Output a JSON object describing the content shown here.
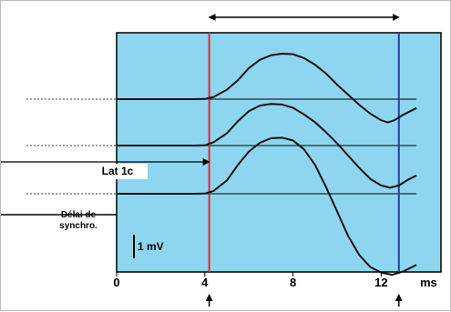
{
  "chart_data": {
    "type": "line",
    "x_unit": "ms",
    "xlim": [
      0,
      13.6
    ],
    "x_ticks": [
      "0",
      "4",
      "8",
      "12"
    ],
    "series": [
      {
        "x": [
          0,
          3.5,
          4.0,
          4.4,
          5.0,
          5.5,
          6.0,
          6.5,
          7.0,
          7.5,
          8.0,
          8.5,
          9.0,
          9.5,
          10.0,
          10.5,
          11.0,
          11.5,
          12.0,
          12.3,
          12.6,
          13.0,
          13.6
        ],
        "y": [
          0,
          0,
          0.02,
          0.2,
          0.85,
          1.7,
          2.8,
          3.55,
          3.95,
          4.1,
          4.05,
          3.7,
          3.1,
          2.3,
          1.3,
          0.4,
          -0.5,
          -1.3,
          -1.9,
          -2.1,
          -1.9,
          -1.4,
          -0.8
        ]
      },
      {
        "x": [
          0,
          3.5,
          4.0,
          4.4,
          5.0,
          5.5,
          6.0,
          6.5,
          7.0,
          7.5,
          8.0,
          8.5,
          9.0,
          9.5,
          10.0,
          10.5,
          11.0,
          11.5,
          12.0,
          12.4,
          12.8,
          13.2,
          13.6
        ],
        "y": [
          0,
          0,
          0.02,
          0.3,
          1.1,
          2.2,
          3.1,
          3.6,
          3.75,
          3.7,
          3.4,
          2.8,
          2.1,
          1.2,
          0.2,
          -0.9,
          -2.0,
          -3.0,
          -3.6,
          -3.8,
          -3.6,
          -3.1,
          -2.7
        ]
      },
      {
        "x": [
          0,
          3.5,
          4.0,
          4.4,
          5.0,
          5.5,
          6.0,
          6.5,
          7.0,
          7.5,
          8.0,
          8.5,
          9.0,
          9.5,
          10.0,
          10.5,
          11.0,
          11.5,
          12.0,
          12.5,
          13.0,
          13.6
        ],
        "y": [
          0,
          0,
          0.02,
          0.25,
          1.2,
          2.6,
          3.8,
          4.6,
          5.0,
          5.05,
          4.8,
          4.0,
          2.6,
          0.6,
          -1.6,
          -3.8,
          -5.5,
          -6.6,
          -7.1,
          -7.3,
          -7.0,
          -6.4
        ]
      }
    ],
    "vertical_markers": [
      {
        "x": -7.2,
        "color": "#e8262c"
      },
      {
        "x": 4.2,
        "color": "#e8262c"
      },
      {
        "x": 12.8,
        "color": "#2b37a8"
      }
    ],
    "arrow_marks": [
      4.2,
      12.8
    ],
    "top_arrow": [
      4.2,
      12.8
    ],
    "lat_arrow": [
      -7.2,
      4.2
    ],
    "delai_arrow": [
      -7.2,
      0
    ],
    "scale_bar": "1 mV",
    "lat_label": "Lat 1c",
    "delai_label": [
      "Délai de",
      "synchro."
    ],
    "x_unit_label": "ms",
    "colors": {
      "panel": "#8ed6f0",
      "trace": "#111111",
      "red_marker": "#e8262c",
      "blue_marker": "#2b37a8"
    }
  }
}
